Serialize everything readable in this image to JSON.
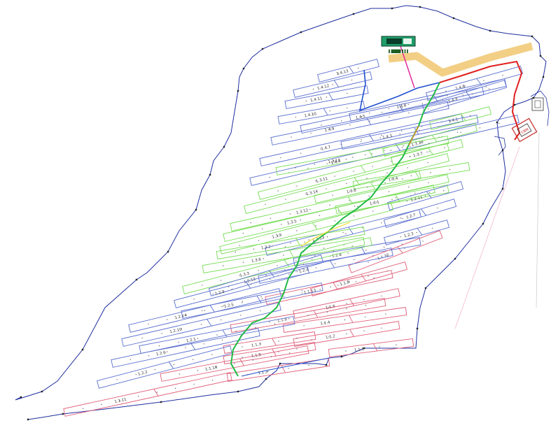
{
  "colors": {
    "boundary": "#1f2fa0",
    "rowBlue": "#5a6fd0",
    "rowGreen": "#77dd55",
    "rowRed": "#e0607a",
    "cableRed": "#e02020",
    "cableGreen": "#22bb44",
    "cableBlue": "#1f4fd0",
    "cableYellow": "#f3e24a",
    "road": "#f2cf85",
    "magenta": "#e0209a",
    "building": "#1f9e6a"
  },
  "building": {
    "label": "▌████▐▐▐"
  },
  "substation": {
    "label": "CBM"
  },
  "rows": [
    {
      "label": "1.4.13",
      "color": "blue"
    },
    {
      "label": "1.4.12",
      "color": "blue"
    },
    {
      "label": "1.4.11",
      "color": "blue"
    },
    {
      "label": "1.4.10",
      "color": "blue"
    },
    {
      "label": "1.4.9",
      "color": "blue"
    },
    {
      "label": "1.4.7",
      "color": "blue"
    },
    {
      "label": "1.4.4",
      "color": "blue"
    },
    {
      "label": "1.4.6",
      "color": "blue"
    },
    {
      "label": "1.4.8",
      "color": "blue"
    },
    {
      "label": "1.4.2",
      "color": "blue"
    },
    {
      "label": "1.4.5",
      "color": "blue"
    },
    {
      "label": "1.4.1",
      "color": "green"
    },
    {
      "label": "1.4.3",
      "color": "blue"
    },
    {
      "label": "1.3.10",
      "color": "green"
    },
    {
      "label": "1.3.13",
      "color": "green"
    },
    {
      "label": "1.3.7",
      "color": "green"
    },
    {
      "label": "1.3.11",
      "color": "green"
    },
    {
      "label": "1.3.14",
      "color": "green"
    },
    {
      "label": "1.3.4",
      "color": "green"
    },
    {
      "label": "1.3.8",
      "color": "green"
    },
    {
      "label": "1.3.12",
      "color": "green"
    },
    {
      "label": "1.3.1",
      "color": "green"
    },
    {
      "label": "1.2.11",
      "color": "blue"
    },
    {
      "label": "1.3.5",
      "color": "green"
    },
    {
      "label": "1.3.9",
      "color": "green"
    },
    {
      "label": "1.2.7",
      "color": "blue"
    },
    {
      "label": "1.2.12",
      "color": "blue"
    },
    {
      "label": "1.3.2",
      "color": "green"
    },
    {
      "label": "1.3.6",
      "color": "green"
    },
    {
      "label": "1.2.3",
      "color": "blue"
    },
    {
      "label": "1.2.8",
      "color": "blue"
    },
    {
      "label": "1.3.3",
      "color": "green"
    },
    {
      "label": "1.1.12",
      "color": "red"
    },
    {
      "label": "1.2.13",
      "color": "blue"
    },
    {
      "label": "1.2.4",
      "color": "blue"
    },
    {
      "label": "1.2.9",
      "color": "blue"
    },
    {
      "label": "1.1.8",
      "color": "red"
    },
    {
      "label": "1.1.13",
      "color": "red"
    },
    {
      "label": "1.2.14",
      "color": "blue"
    },
    {
      "label": "1.2.5",
      "color": "blue"
    },
    {
      "label": "1.1.6",
      "color": "red"
    },
    {
      "label": "1.2.10",
      "color": "blue"
    },
    {
      "label": "1.1.9",
      "color": "red"
    },
    {
      "label": "1.1.4",
      "color": "red"
    },
    {
      "label": "1.2.1",
      "color": "blue"
    },
    {
      "label": "1.1.2",
      "color": "red"
    },
    {
      "label": "1.2.6",
      "color": "blue"
    },
    {
      "label": "1.1.7",
      "color": "red"
    },
    {
      "label": "1.1.1",
      "color": "red"
    },
    {
      "label": "1.1.5",
      "color": "red"
    },
    {
      "label": "1.2.2",
      "color": "blue"
    },
    {
      "label": "1.1.10",
      "color": "red"
    },
    {
      "label": "1.1.3",
      "color": "red"
    },
    {
      "label": "1.1.11",
      "color": "red"
    }
  ]
}
